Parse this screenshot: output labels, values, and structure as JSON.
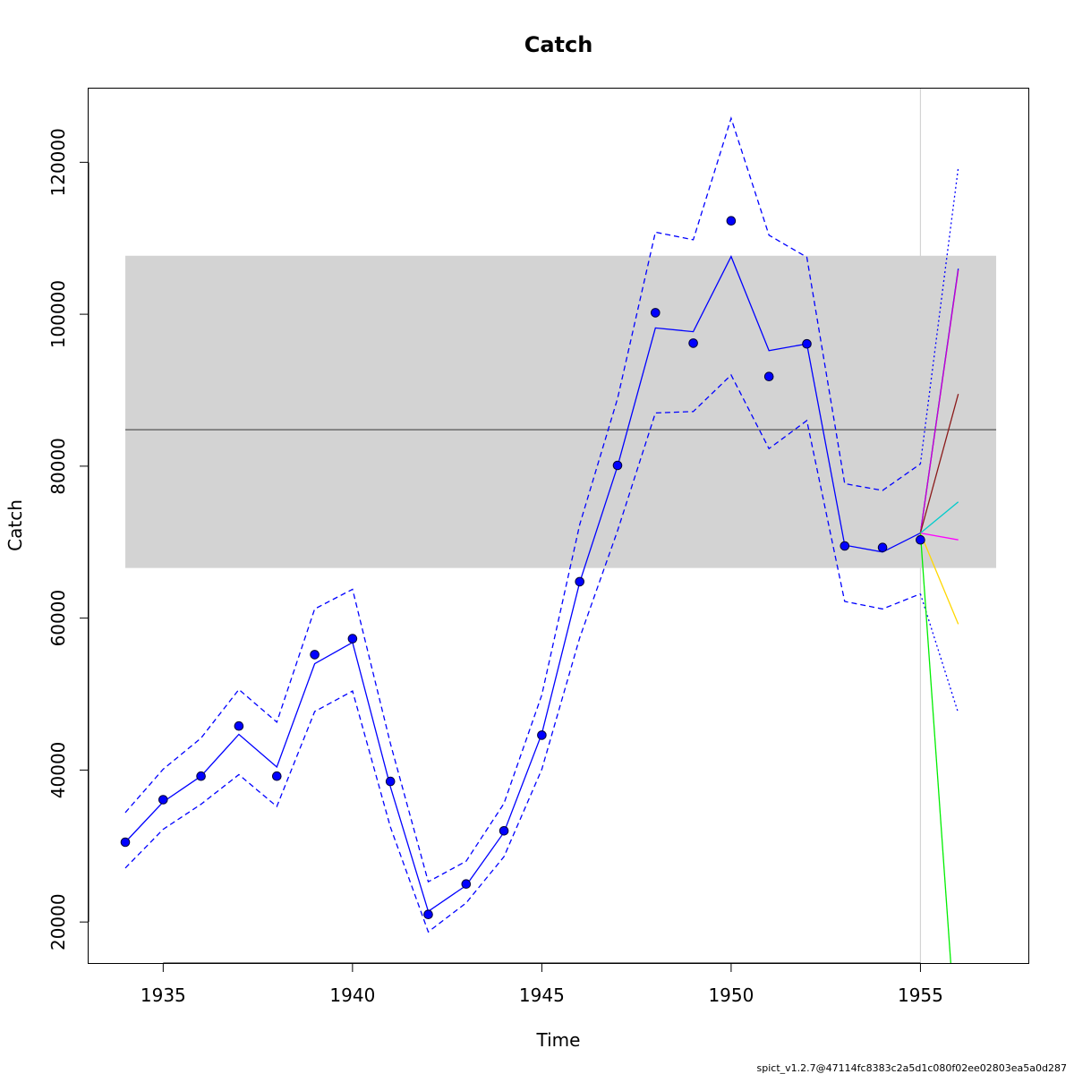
{
  "chart_data": {
    "type": "line",
    "title": "Catch",
    "xlabel": "Time",
    "ylabel": "Catch",
    "xlim": [
      1933.03,
      1957.85
    ],
    "ylim": [
      14600,
      129700
    ],
    "x_ticks": [
      1935,
      1940,
      1945,
      1950,
      1955
    ],
    "y_ticks": [
      20000,
      40000,
      60000,
      80000,
      100000,
      120000
    ],
    "grid": false,
    "legend": "none",
    "footer": "spict_v1.2.7@47114fc8383c2a5d1c080f02ee02803ea5a0d287",
    "msy_band": {
      "x_range": [
        1934,
        1957
      ],
      "lower": 66600,
      "upper": 107700,
      "color": "#d3d3d3"
    },
    "msy_line": {
      "x_range": [
        1934,
        1957
      ],
      "y": 84800,
      "color": "#555555"
    },
    "current_time_line": {
      "x": 1955,
      "color": "#d3d3d3"
    },
    "observed": {
      "color": "#0000ff",
      "x": [
        1934,
        1935,
        1936,
        1937,
        1938,
        1939,
        1940,
        1941,
        1942,
        1943,
        1944,
        1945,
        1946,
        1947,
        1948,
        1949,
        1950,
        1951,
        1952,
        1953,
        1954,
        1955
      ],
      "y": [
        30500,
        36100,
        39200,
        45800,
        39200,
        55200,
        57300,
        38500,
        21000,
        25000,
        32000,
        44600,
        64800,
        80100,
        100200,
        96200,
        112300,
        91800,
        96100,
        69500,
        69300,
        70300
      ]
    },
    "predicted": {
      "color": "#0000ff",
      "x": [
        1934,
        1935,
        1936,
        1937,
        1938,
        1939,
        1940,
        1941,
        1942,
        1943,
        1944,
        1945,
        1946,
        1947,
        1948,
        1949,
        1950,
        1951,
        1952,
        1953,
        1954,
        1955
      ],
      "y": [
        30500,
        35800,
        39200,
        44700,
        40400,
        54000,
        56800,
        37800,
        21400,
        24800,
        31800,
        44800,
        64700,
        80000,
        98200,
        97700,
        107600,
        95200,
        96100,
        69600,
        68700,
        71200
      ]
    },
    "ci_upper": {
      "color": "#0000ff",
      "x": [
        1934,
        1935,
        1936,
        1937,
        1938,
        1939,
        1940,
        1941,
        1942,
        1943,
        1944,
        1945,
        1946,
        1947,
        1948,
        1949,
        1950,
        1951,
        1952,
        1953,
        1954,
        1955
      ],
      "y": [
        34400,
        40100,
        44200,
        50600,
        46300,
        61200,
        63800,
        43500,
        25300,
        28000,
        35600,
        49900,
        72300,
        88900,
        110800,
        109800,
        125800,
        110400,
        107500,
        77700,
        76800,
        80300
      ]
    },
    "ci_lower": {
      "color": "#0000ff",
      "x": [
        1934,
        1935,
        1936,
        1937,
        1938,
        1939,
        1940,
        1941,
        1942,
        1943,
        1944,
        1945,
        1946,
        1947,
        1948,
        1949,
        1950,
        1951,
        1952,
        1953,
        1954,
        1955
      ],
      "y": [
        27100,
        32200,
        35500,
        39400,
        35200,
        47700,
        50400,
        32500,
        18700,
        22500,
        28600,
        40100,
        57400,
        71500,
        87000,
        87200,
        92000,
        82300,
        86000,
        62200,
        61200,
        63200
      ]
    },
    "forecast_ci": {
      "color": "#0000ff",
      "x": [
        1955,
        1956
      ],
      "upper": [
        80300,
        119300
      ],
      "lower": [
        63200,
        47500
      ]
    },
    "scenarios": [
      {
        "color": "#0000ff",
        "x": [
          1955,
          1956
        ],
        "y": [
          71200,
          106000
        ]
      },
      {
        "color": "#cc00cc",
        "x": [
          1955,
          1956
        ],
        "y": [
          71200,
          105800
        ]
      },
      {
        "color": "#8b1a1a",
        "x": [
          1955,
          1956
        ],
        "y": [
          71200,
          89500
        ]
      },
      {
        "color": "#00cccc",
        "x": [
          1955,
          1956
        ],
        "y": [
          71200,
          75300
        ]
      },
      {
        "color": "#ff00ff",
        "x": [
          1955,
          1956
        ],
        "y": [
          71200,
          70300
        ]
      },
      {
        "color": "#ffd700",
        "x": [
          1955,
          1956
        ],
        "y": [
          71200,
          59200
        ]
      },
      {
        "color": "#00ee00",
        "x": [
          1955,
          1955.8
        ],
        "y": [
          71200,
          14600
        ]
      }
    ]
  }
}
